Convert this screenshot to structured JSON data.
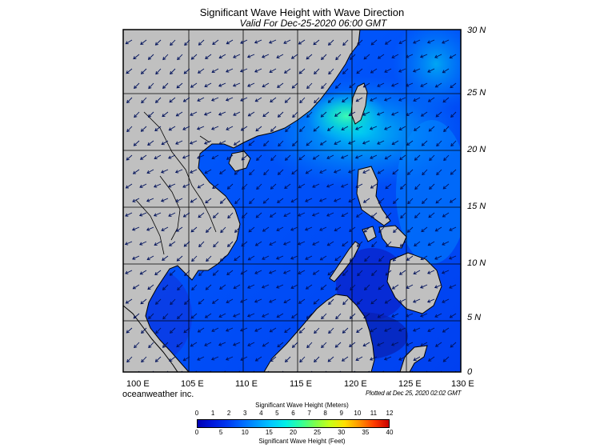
{
  "title": "Significant Wave Height with Wave Direction",
  "subtitle": "Valid For Dec-25-2020 06:00 GMT",
  "credit": "oceanweather inc.",
  "plotted": "Plotted at Dec 25, 2020 02:02 GMT",
  "lat_labels": [
    "30 N",
    "25 N",
    "20 N",
    "15 N",
    "10 N",
    "5 N",
    "0"
  ],
  "lon_labels": [
    "100 E",
    "105 E",
    "110 E",
    "115 E",
    "120 E",
    "125 E",
    "130 E"
  ],
  "colorbar": {
    "title_meters": "Significant Wave Height (Meters)",
    "title_feet": "Significant Wave Height (Feet)",
    "meter_ticks": [
      "0",
      "1",
      "2",
      "3",
      "4",
      "5",
      "6",
      "7",
      "8",
      "9",
      "10",
      "11",
      "12"
    ],
    "feet_ticks": [
      "0",
      "5",
      "10",
      "15",
      "20",
      "25",
      "30",
      "35",
      "40"
    ],
    "colors": [
      "#0000b4",
      "#0018dc",
      "#0038f0",
      "#0068ff",
      "#0098ff",
      "#00c8ff",
      "#00f0e6",
      "#30ff9c",
      "#7cff4c",
      "#c8ff18",
      "#ffe000",
      "#ff9400",
      "#ff3c00",
      "#c80000"
    ]
  },
  "colors": {
    "land": "#c0c0c0",
    "coast": "#000000",
    "sea_low": "#0a3cf0",
    "sea_mid": "#0064ff",
    "sea_high": "#00c8ff",
    "sea_peak": "#30e8b8",
    "grid": "#000000"
  }
}
